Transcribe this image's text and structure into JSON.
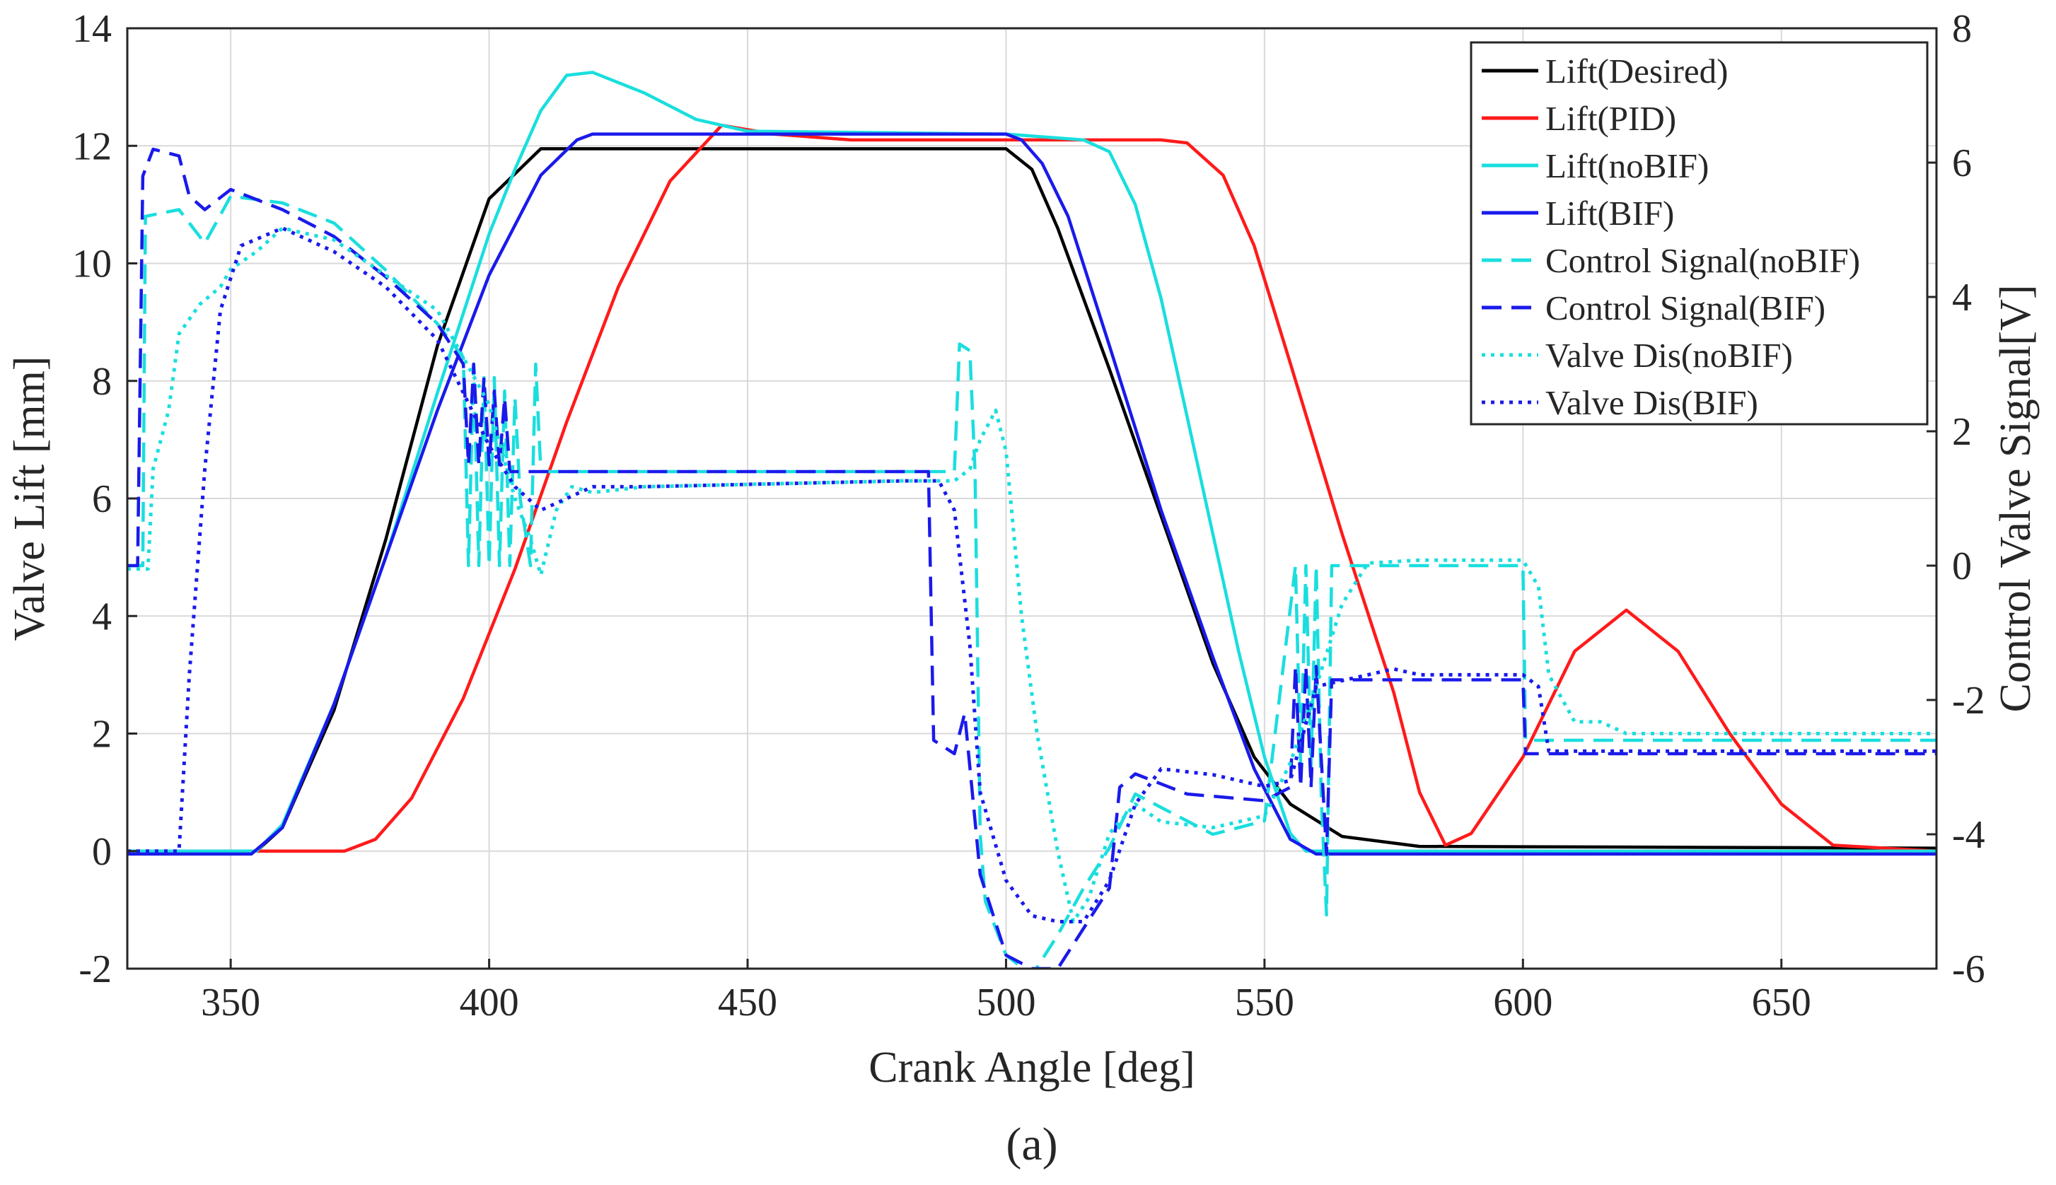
{
  "chart_data": {
    "type": "line",
    "xlabel": "Crank Angle [deg]",
    "ylabel": "Valve Lift [mm]",
    "y2label": "Control Valve Signal[V]",
    "caption": "(a)",
    "xlim": [
      330,
      680
    ],
    "ylim": [
      -2,
      14
    ],
    "y2lim": [
      -6,
      8
    ],
    "xticks": [
      "350",
      "400",
      "450",
      "500",
      "550",
      "600",
      "650"
    ],
    "yticks": [
      "-2",
      "0",
      "2",
      "4",
      "6",
      "8",
      "10",
      "12",
      "14"
    ],
    "y2ticks": [
      "-6",
      "-4",
      "-2",
      "0",
      "2",
      "4",
      "6",
      "8"
    ],
    "grid": true,
    "legend_position": "top-right",
    "series": [
      {
        "name": "Lift(Desired)",
        "color": "#000000",
        "style": "solid",
        "axis": "left",
        "points": [
          [
            330,
            0
          ],
          [
            355,
            0
          ],
          [
            360,
            0.4
          ],
          [
            370,
            2.4
          ],
          [
            380,
            5.3
          ],
          [
            390,
            8.6
          ],
          [
            400,
            11.1
          ],
          [
            410,
            11.95
          ],
          [
            450,
            11.95
          ],
          [
            490,
            11.95
          ],
          [
            500,
            11.95
          ],
          [
            505,
            11.6
          ],
          [
            510,
            10.6
          ],
          [
            520,
            8.2
          ],
          [
            530,
            5.7
          ],
          [
            540,
            3.2
          ],
          [
            548,
            1.6
          ],
          [
            555,
            0.8
          ],
          [
            565,
            0.25
          ],
          [
            580,
            0.08
          ],
          [
            680,
            0.05
          ]
        ]
      },
      {
        "name": "Lift(PID)",
        "color": "#ff1a1a",
        "style": "solid",
        "axis": "left",
        "points": [
          [
            330,
            0
          ],
          [
            372,
            0
          ],
          [
            378,
            0.2
          ],
          [
            385,
            0.9
          ],
          [
            395,
            2.6
          ],
          [
            405,
            4.8
          ],
          [
            415,
            7.3
          ],
          [
            425,
            9.6
          ],
          [
            435,
            11.4
          ],
          [
            445,
            12.35
          ],
          [
            455,
            12.2
          ],
          [
            470,
            12.1
          ],
          [
            530,
            12.1
          ],
          [
            535,
            12.05
          ],
          [
            542,
            11.5
          ],
          [
            548,
            10.3
          ],
          [
            555,
            8.3
          ],
          [
            565,
            5.4
          ],
          [
            575,
            2.7
          ],
          [
            580,
            1.0
          ],
          [
            585,
            0.1
          ],
          [
            590,
            0.3
          ],
          [
            600,
            1.6
          ],
          [
            610,
            3.4
          ],
          [
            620,
            4.1
          ],
          [
            630,
            3.4
          ],
          [
            640,
            2.0
          ],
          [
            650,
            0.8
          ],
          [
            660,
            0.1
          ],
          [
            680,
            0
          ]
        ]
      },
      {
        "name": "Lift(noBIF)",
        "color": "#1adede",
        "style": "solid",
        "axis": "left",
        "points": [
          [
            330,
            0
          ],
          [
            355,
            0
          ],
          [
            360,
            0.45
          ],
          [
            370,
            2.5
          ],
          [
            380,
            5.0
          ],
          [
            390,
            7.8
          ],
          [
            400,
            10.5
          ],
          [
            405,
            11.6
          ],
          [
            410,
            12.6
          ],
          [
            415,
            13.2
          ],
          [
            420,
            13.25
          ],
          [
            430,
            12.9
          ],
          [
            440,
            12.45
          ],
          [
            450,
            12.25
          ],
          [
            500,
            12.2
          ],
          [
            515,
            12.1
          ],
          [
            520,
            11.9
          ],
          [
            525,
            11.0
          ],
          [
            530,
            9.4
          ],
          [
            535,
            7.4
          ],
          [
            540,
            5.4
          ],
          [
            545,
            3.4
          ],
          [
            550,
            1.6
          ],
          [
            555,
            0.3
          ],
          [
            558,
            0
          ],
          [
            565,
            0
          ],
          [
            680,
            0
          ]
        ]
      },
      {
        "name": "Lift(BIF)",
        "color": "#1a1aeb",
        "style": "solid",
        "axis": "left",
        "points": [
          [
            330,
            -0.05
          ],
          [
            354,
            -0.05
          ],
          [
            360,
            0.4
          ],
          [
            370,
            2.5
          ],
          [
            380,
            5.0
          ],
          [
            390,
            7.5
          ],
          [
            400,
            9.8
          ],
          [
            410,
            11.5
          ],
          [
            417,
            12.1
          ],
          [
            420,
            12.2
          ],
          [
            500,
            12.2
          ],
          [
            503,
            12.1
          ],
          [
            507,
            11.7
          ],
          [
            512,
            10.8
          ],
          [
            520,
            8.6
          ],
          [
            530,
            5.8
          ],
          [
            540,
            3.3
          ],
          [
            548,
            1.4
          ],
          [
            555,
            0.2
          ],
          [
            560,
            -0.05
          ],
          [
            680,
            -0.05
          ]
        ]
      },
      {
        "name": "Control Signal(noBIF)",
        "color": "#1adede",
        "style": "dashed",
        "axis": "right",
        "points": [
          [
            330,
            0
          ],
          [
            333,
            0
          ],
          [
            333.5,
            5.2
          ],
          [
            340,
            5.3
          ],
          [
            342,
            5.1
          ],
          [
            345,
            4.8
          ],
          [
            350,
            5.5
          ],
          [
            360,
            5.4
          ],
          [
            370,
            5.1
          ],
          [
            380,
            4.4
          ],
          [
            390,
            3.6
          ],
          [
            395,
            3.1
          ],
          [
            396,
            0
          ],
          [
            397,
            3
          ],
          [
            398,
            0
          ],
          [
            399,
            2.8
          ],
          [
            400,
            0
          ],
          [
            401,
            2.8
          ],
          [
            402,
            0
          ],
          [
            403,
            2.6
          ],
          [
            404,
            0
          ],
          [
            405,
            2.5
          ],
          [
            406,
            1
          ],
          [
            408,
            0
          ],
          [
            409,
            3
          ],
          [
            410,
            1.4
          ],
          [
            490,
            1.4
          ],
          [
            491,
            3.3
          ],
          [
            493,
            3.2
          ],
          [
            494,
            1.4
          ],
          [
            495,
            -4
          ],
          [
            496,
            -5
          ],
          [
            500,
            -5.8
          ],
          [
            505,
            -6.1
          ],
          [
            510,
            -5.5
          ],
          [
            515,
            -4.8
          ],
          [
            520,
            -4.2
          ],
          [
            525,
            -3.4
          ],
          [
            530,
            -3.6
          ],
          [
            540,
            -4
          ],
          [
            550,
            -3.8
          ],
          [
            556,
            0
          ],
          [
            557,
            -3
          ],
          [
            558,
            0
          ],
          [
            559,
            -3
          ],
          [
            560,
            0
          ],
          [
            561,
            -3.5
          ],
          [
            562,
            -5.2
          ],
          [
            563,
            0
          ],
          [
            600,
            0
          ],
          [
            600.5,
            -2.6
          ],
          [
            680,
            -2.6
          ]
        ]
      },
      {
        "name": "Control Signal(BIF)",
        "color": "#1a1aeb",
        "style": "dashed",
        "axis": "right",
        "points": [
          [
            330,
            0
          ],
          [
            332,
            0
          ],
          [
            333,
            5.8
          ],
          [
            335,
            6.2
          ],
          [
            340,
            6.1
          ],
          [
            342,
            5.5
          ],
          [
            345,
            5.3
          ],
          [
            350,
            5.6
          ],
          [
            360,
            5.3
          ],
          [
            370,
            4.9
          ],
          [
            380,
            4.3
          ],
          [
            390,
            3.6
          ],
          [
            395,
            3.0
          ],
          [
            396,
            1.5
          ],
          [
            397,
            3
          ],
          [
            398,
            1.5
          ],
          [
            399,
            2.8
          ],
          [
            400,
            1.5
          ],
          [
            401,
            2.6
          ],
          [
            402,
            1.5
          ],
          [
            403,
            2.5
          ],
          [
            404,
            1.4
          ],
          [
            410,
            1.4
          ],
          [
            485,
            1.4
          ],
          [
            486,
            -2.6
          ],
          [
            490,
            -2.8
          ],
          [
            492,
            -2.2
          ],
          [
            495,
            -4.6
          ],
          [
            500,
            -5.8
          ],
          [
            505,
            -6.0
          ],
          [
            510,
            -6.0
          ],
          [
            515,
            -5.4
          ],
          [
            520,
            -4.8
          ],
          [
            522,
            -3.3
          ],
          [
            525,
            -3.1
          ],
          [
            535,
            -3.4
          ],
          [
            550,
            -3.5
          ],
          [
            555,
            -3.3
          ],
          [
            556,
            -1.5
          ],
          [
            557,
            -3.3
          ],
          [
            558,
            -1.5
          ],
          [
            559,
            -3.3
          ],
          [
            560,
            -1.5
          ],
          [
            562,
            -4.3
          ],
          [
            563,
            -1.7
          ],
          [
            600,
            -1.7
          ],
          [
            600.5,
            -2.8
          ],
          [
            680,
            -2.8
          ]
        ]
      },
      {
        "name": "Valve Dis(noBIF)",
        "color": "#1adede",
        "style": "dotted",
        "axis": "left",
        "points": [
          [
            330,
            4.8
          ],
          [
            334,
            4.8
          ],
          [
            335,
            6.5
          ],
          [
            338,
            7.5
          ],
          [
            340,
            8.8
          ],
          [
            344,
            9.3
          ],
          [
            348,
            9.6
          ],
          [
            350,
            9.9
          ],
          [
            355,
            10.2
          ],
          [
            360,
            10.6
          ],
          [
            370,
            10.4
          ],
          [
            380,
            9.8
          ],
          [
            390,
            9.2
          ],
          [
            400,
            7.6
          ],
          [
            405,
            6.0
          ],
          [
            408,
            5.3
          ],
          [
            410,
            4.7
          ],
          [
            413,
            5.8
          ],
          [
            416,
            6.2
          ],
          [
            420,
            6.1
          ],
          [
            430,
            6.2
          ],
          [
            480,
            6.3
          ],
          [
            490,
            6.3
          ],
          [
            493,
            6.5
          ],
          [
            495,
            7.0
          ],
          [
            498,
            7.5
          ],
          [
            500,
            6.8
          ],
          [
            503,
            4.0
          ],
          [
            506,
            2.0
          ],
          [
            510,
            0
          ],
          [
            513,
            -1.2
          ],
          [
            516,
            -0.8
          ],
          [
            520,
            0.3
          ],
          [
            525,
            0.8
          ],
          [
            530,
            0.5
          ],
          [
            540,
            0.4
          ],
          [
            550,
            0.6
          ],
          [
            555,
            1.5
          ],
          [
            560,
            2.8
          ],
          [
            565,
            4.2
          ],
          [
            570,
            4.9
          ],
          [
            580,
            4.95
          ],
          [
            600,
            4.95
          ],
          [
            603,
            4.5
          ],
          [
            605,
            3.0
          ],
          [
            610,
            2.2
          ],
          [
            615,
            2.2
          ],
          [
            620,
            2.0
          ],
          [
            680,
            2.0
          ]
        ]
      },
      {
        "name": "Valve Dis(BIF)",
        "color": "#1a1aeb",
        "style": "dotted",
        "axis": "left",
        "points": [
          [
            330,
            0
          ],
          [
            340,
            0
          ],
          [
            342,
            3.0
          ],
          [
            345,
            6.5
          ],
          [
            348,
            9.2
          ],
          [
            352,
            10.3
          ],
          [
            360,
            10.6
          ],
          [
            370,
            10.2
          ],
          [
            380,
            9.6
          ],
          [
            390,
            8.7
          ],
          [
            400,
            6.9
          ],
          [
            405,
            6.2
          ],
          [
            410,
            5.8
          ],
          [
            415,
            6.0
          ],
          [
            420,
            6.2
          ],
          [
            430,
            6.2
          ],
          [
            480,
            6.3
          ],
          [
            487,
            6.3
          ],
          [
            490,
            5.8
          ],
          [
            493,
            3.5
          ],
          [
            495,
            1.0
          ],
          [
            500,
            -0.5
          ],
          [
            505,
            -1.1
          ],
          [
            510,
            -1.2
          ],
          [
            515,
            -1.2
          ],
          [
            520,
            -0.5
          ],
          [
            525,
            0.8
          ],
          [
            530,
            1.4
          ],
          [
            540,
            1.3
          ],
          [
            550,
            1.1
          ],
          [
            555,
            1.2
          ],
          [
            560,
            2.8
          ],
          [
            565,
            2.9
          ],
          [
            570,
            3.0
          ],
          [
            575,
            3.1
          ],
          [
            580,
            3.0
          ],
          [
            600,
            3.0
          ],
          [
            603,
            2.8
          ],
          [
            605,
            1.7
          ],
          [
            610,
            1.7
          ],
          [
            680,
            1.7
          ]
        ]
      }
    ]
  }
}
